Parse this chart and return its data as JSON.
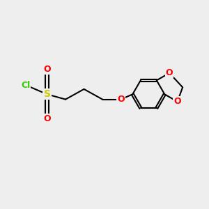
{
  "background_color": "#eeeeee",
  "atom_colors": {
    "S": "#cccc00",
    "O": "#ff0000",
    "Cl": "#33cc00",
    "C": "#000000"
  },
  "bond_color": "#000000",
  "bond_width": 1.5,
  "dbo": 0.06,
  "figsize": [
    3.0,
    3.0
  ],
  "dpi": 100
}
